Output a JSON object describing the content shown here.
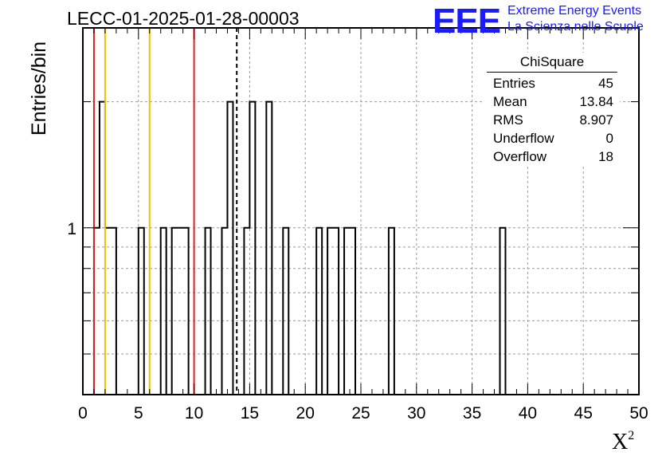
{
  "page": {
    "title": "LECC-01-2025-01-28-00003",
    "logo": {
      "mark": "EEE",
      "line1": "Extreme Energy Events",
      "line2": "La Scienza nelle Scuole"
    }
  },
  "stats_box": {
    "title": "ChiSquare",
    "rows": [
      {
        "label": "Entries",
        "value": "45"
      },
      {
        "label": "Mean",
        "value": "13.84"
      },
      {
        "label": "RMS",
        "value": "8.907"
      },
      {
        "label": "Underflow",
        "value": "0"
      },
      {
        "label": "Overflow",
        "value": "18"
      }
    ]
  },
  "chart_data": {
    "type": "bar",
    "title": "LECC-01-2025-01-28-00003",
    "xlabel": "X",
    "xlabel_superscript": "2",
    "ylabel": "Entries/bin",
    "xlim": [
      0,
      50
    ],
    "ylim": [
      0.4,
      3
    ],
    "yscale": "log",
    "grid": true,
    "bin_width": 0.5,
    "x_ticks": [
      0,
      5,
      10,
      15,
      20,
      25,
      30,
      35,
      40,
      45,
      50
    ],
    "y_tick_labels": [
      {
        "value": 1,
        "label": "1"
      }
    ],
    "bins": [
      {
        "x": 1.0,
        "count": 1
      },
      {
        "x": 1.5,
        "count": 2
      },
      {
        "x": 2.0,
        "count": 1
      },
      {
        "x": 2.5,
        "count": 1
      },
      {
        "x": 5.0,
        "count": 1
      },
      {
        "x": 7.0,
        "count": 1
      },
      {
        "x": 8.0,
        "count": 1
      },
      {
        "x": 8.5,
        "count": 1
      },
      {
        "x": 9.0,
        "count": 1
      },
      {
        "x": 11.0,
        "count": 1
      },
      {
        "x": 12.5,
        "count": 1
      },
      {
        "x": 13.0,
        "count": 2
      },
      {
        "x": 14.5,
        "count": 1
      },
      {
        "x": 15.0,
        "count": 2
      },
      {
        "x": 16.5,
        "count": 2
      },
      {
        "x": 18.0,
        "count": 1
      },
      {
        "x": 21.0,
        "count": 1
      },
      {
        "x": 22.0,
        "count": 1
      },
      {
        "x": 22.5,
        "count": 1
      },
      {
        "x": 23.5,
        "count": 1
      },
      {
        "x": 24.0,
        "count": 1
      },
      {
        "x": 27.5,
        "count": 1
      },
      {
        "x": 37.5,
        "count": 1
      }
    ],
    "reference_lines": [
      {
        "x": 1,
        "color": "#e02020",
        "style": "solid"
      },
      {
        "x": 2,
        "color": "#f0c000",
        "style": "solid"
      },
      {
        "x": 6,
        "color": "#f0c000",
        "style": "solid"
      },
      {
        "x": 10,
        "color": "#e02020",
        "style": "solid"
      },
      {
        "x": 13.84,
        "color": "#000000",
        "style": "dashed"
      }
    ]
  }
}
